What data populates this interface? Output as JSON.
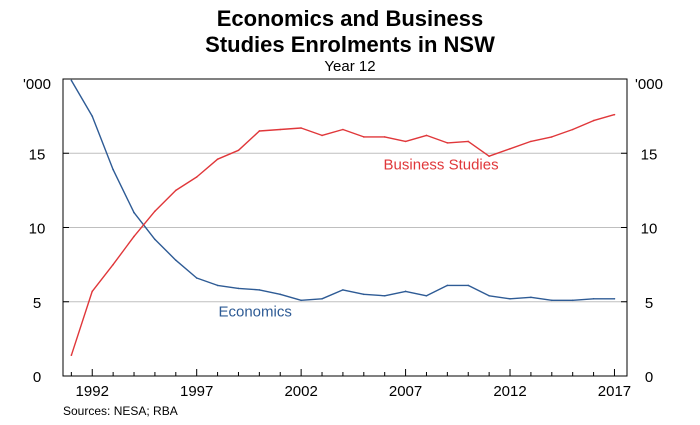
{
  "colors": {
    "economics": "#2e5b95",
    "business_studies": "#e0373a",
    "gridline": "#bfbfbf",
    "frame": "#000000"
  },
  "chart_data": {
    "type": "line",
    "title_line1": "Economics and Business",
    "title_line2": "Studies Enrolments in NSW",
    "subtitle": "Year 12",
    "left_unit": "'000",
    "right_unit": "'000",
    "source": "Sources:  NESA; RBA",
    "ylim": [
      0,
      20
    ],
    "xlim": [
      1990.6,
      2017.6
    ],
    "yticks": [
      0,
      5,
      10,
      15
    ],
    "xticks": [
      1992,
      1997,
      2002,
      2007,
      2012,
      2017
    ],
    "grid": true,
    "legend": "inline labels",
    "x": [
      1991,
      1992,
      1993,
      1994,
      1995,
      1996,
      1997,
      1998,
      1999,
      2000,
      2001,
      2002,
      2003,
      2004,
      2005,
      2006,
      2007,
      2008,
      2009,
      2010,
      2011,
      2012,
      2013,
      2014,
      2015,
      2016,
      2017
    ],
    "series": [
      {
        "name": "Economics",
        "color_key": "economics",
        "label_x": 1999.8,
        "label_y": 4.0,
        "values": [
          19.9,
          17.5,
          13.9,
          11.0,
          9.2,
          7.8,
          6.6,
          6.1,
          5.9,
          5.8,
          5.5,
          5.1,
          5.2,
          5.8,
          5.5,
          5.4,
          5.7,
          5.4,
          6.1,
          6.1,
          5.4,
          5.2,
          5.3,
          5.1,
          5.1,
          5.2,
          5.2
        ]
      },
      {
        "name": "Business Studies",
        "color_key": "business_studies",
        "label_x": 2008.7,
        "label_y": 13.9,
        "values": [
          1.4,
          5.7,
          7.5,
          9.4,
          11.1,
          12.5,
          13.4,
          14.6,
          15.2,
          16.5,
          16.6,
          16.7,
          16.2,
          16.6,
          16.1,
          16.1,
          15.8,
          16.2,
          15.7,
          15.8,
          14.8,
          15.3,
          15.8,
          16.1,
          16.6,
          17.2,
          17.6
        ]
      }
    ]
  }
}
